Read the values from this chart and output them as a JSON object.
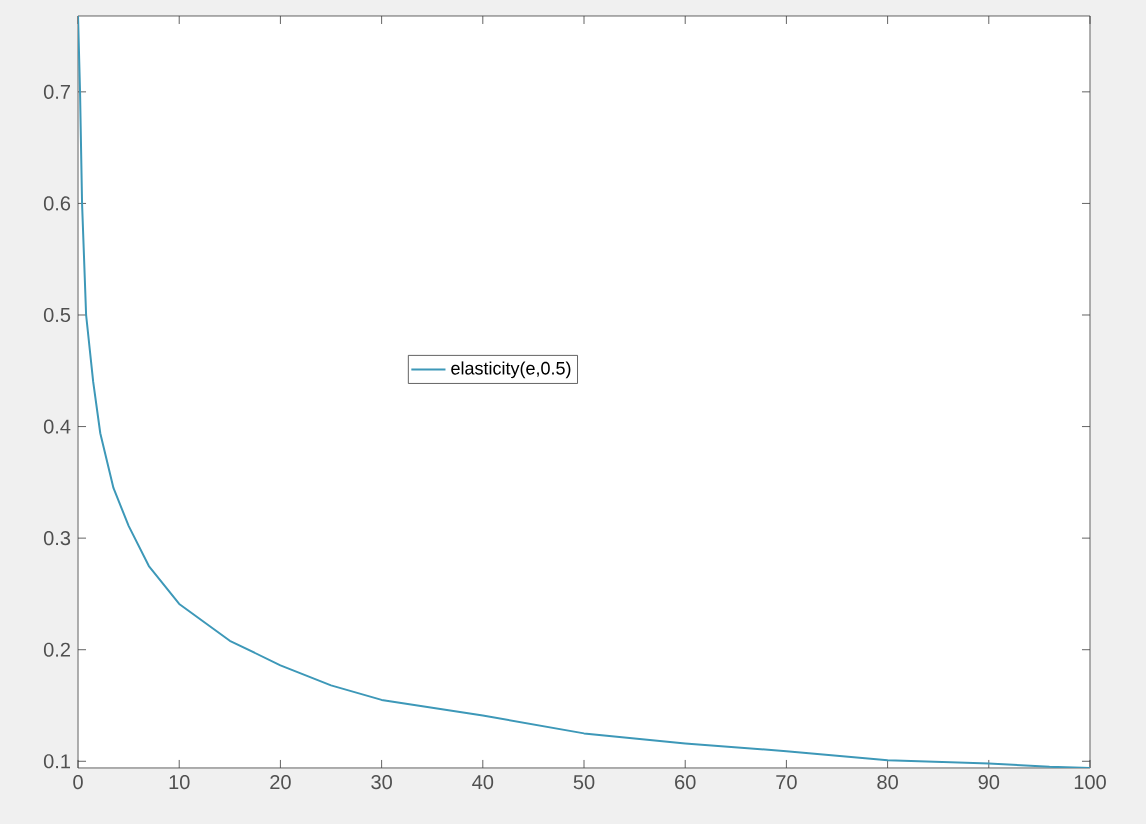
{
  "chart_data": {
    "type": "line",
    "xlim": [
      0,
      100
    ],
    "ylim": [
      0.094,
      0.768
    ],
    "xticks": [
      0,
      10,
      20,
      30,
      40,
      50,
      60,
      70,
      80,
      90,
      100
    ],
    "yticks": [
      0.1,
      0.2,
      0.3,
      0.4,
      0.5,
      0.6,
      0.7
    ],
    "legend": "center",
    "grid": false,
    "marker": "none",
    "line_style": "solid",
    "series": [
      {
        "name": "elasticity(e,0.5)",
        "color": "#3d98b8",
        "x": [
          0,
          0.2,
          0.4,
          0.8,
          1.5,
          2.2,
          3.5,
          5,
          7,
          10,
          15,
          20,
          25,
          30,
          40,
          50,
          60,
          70,
          80,
          90,
          96,
          100
        ],
        "values": [
          0.768,
          0.7,
          0.6,
          0.5,
          0.44,
          0.394,
          0.345,
          0.311,
          0.275,
          0.241,
          0.208,
          0.186,
          0.168,
          0.155,
          0.141,
          0.125,
          0.116,
          0.109,
          0.101,
          0.098,
          0.095,
          0.094
        ]
      }
    ]
  }
}
